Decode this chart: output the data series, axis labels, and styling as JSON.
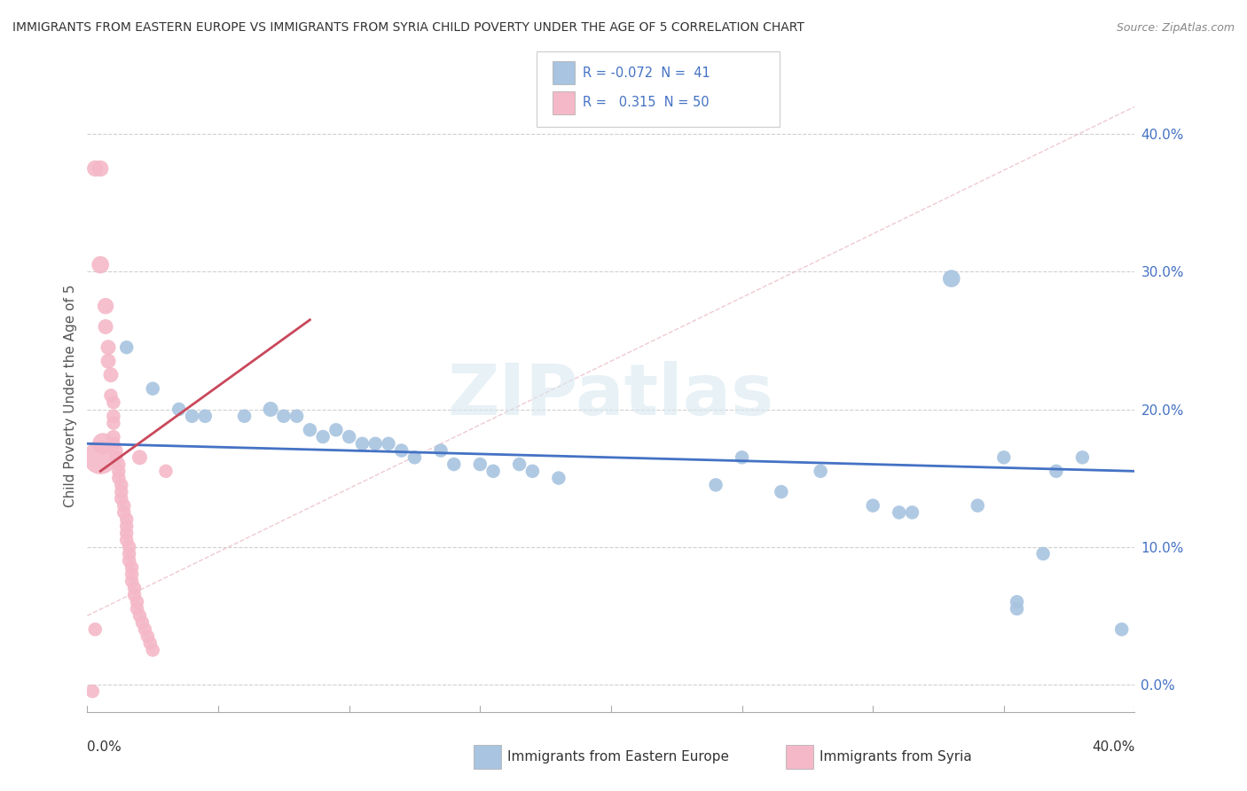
{
  "title": "IMMIGRANTS FROM EASTERN EUROPE VS IMMIGRANTS FROM SYRIA CHILD POVERTY UNDER THE AGE OF 5 CORRELATION CHART",
  "source": "Source: ZipAtlas.com",
  "ylabel": "Child Poverty Under the Age of 5",
  "ytick_vals": [
    0.0,
    0.1,
    0.2,
    0.3,
    0.4
  ],
  "ytick_labels": [
    "0.0%",
    "10.0%",
    "20.0%",
    "30.0%",
    "40.0%"
  ],
  "xlim": [
    0,
    0.4
  ],
  "ylim": [
    -0.02,
    0.44
  ],
  "watermark": "ZIPatlas",
  "blue_line_color": "#4472c4",
  "pink_line_color": "#c9485b",
  "diag_line_color": "#e8b4bc",
  "grid_color": "#d0d0d0",
  "background_color": "#ffffff",
  "blue_scatter_color": "#a8c4e0",
  "pink_scatter_color": "#f4b8c8",
  "blue_R": -0.072,
  "blue_N": 41,
  "pink_R": 0.315,
  "pink_N": 50,
  "blue_line_x0": 0.0,
  "blue_line_y0": 0.175,
  "blue_line_x1": 0.4,
  "blue_line_y1": 0.155,
  "pink_line_x0": 0.005,
  "pink_line_y0": 0.155,
  "pink_line_x1": 0.085,
  "pink_line_y1": 0.265,
  "diag_line_x0": 0.0,
  "diag_line_y0": 0.05,
  "diag_line_x1": 0.4,
  "diag_line_y1": 0.42,
  "blue_points": [
    [
      0.015,
      0.245
    ],
    [
      0.025,
      0.215
    ],
    [
      0.035,
      0.2
    ],
    [
      0.04,
      0.195
    ],
    [
      0.045,
      0.195
    ],
    [
      0.06,
      0.195
    ],
    [
      0.07,
      0.2
    ],
    [
      0.075,
      0.195
    ],
    [
      0.08,
      0.195
    ],
    [
      0.085,
      0.185
    ],
    [
      0.09,
      0.18
    ],
    [
      0.095,
      0.185
    ],
    [
      0.1,
      0.18
    ],
    [
      0.105,
      0.175
    ],
    [
      0.11,
      0.175
    ],
    [
      0.115,
      0.175
    ],
    [
      0.12,
      0.17
    ],
    [
      0.125,
      0.165
    ],
    [
      0.135,
      0.17
    ],
    [
      0.14,
      0.16
    ],
    [
      0.15,
      0.16
    ],
    [
      0.155,
      0.155
    ],
    [
      0.165,
      0.16
    ],
    [
      0.17,
      0.155
    ],
    [
      0.18,
      0.15
    ],
    [
      0.24,
      0.145
    ],
    [
      0.25,
      0.165
    ],
    [
      0.265,
      0.14
    ],
    [
      0.28,
      0.155
    ],
    [
      0.3,
      0.13
    ],
    [
      0.31,
      0.125
    ],
    [
      0.315,
      0.125
    ],
    [
      0.33,
      0.295
    ],
    [
      0.34,
      0.13
    ],
    [
      0.35,
      0.165
    ],
    [
      0.355,
      0.06
    ],
    [
      0.355,
      0.055
    ],
    [
      0.365,
      0.095
    ],
    [
      0.37,
      0.155
    ],
    [
      0.38,
      0.165
    ],
    [
      0.395,
      0.04
    ]
  ],
  "blue_sizes": [
    25,
    25,
    25,
    25,
    25,
    25,
    30,
    25,
    25,
    25,
    25,
    25,
    25,
    25,
    25,
    25,
    25,
    25,
    25,
    25,
    25,
    25,
    25,
    25,
    25,
    25,
    25,
    25,
    25,
    25,
    25,
    25,
    40,
    25,
    25,
    25,
    25,
    25,
    25,
    25,
    25
  ],
  "pink_points": [
    [
      0.003,
      0.375
    ],
    [
      0.005,
      0.305
    ],
    [
      0.007,
      0.275
    ],
    [
      0.007,
      0.26
    ],
    [
      0.008,
      0.245
    ],
    [
      0.008,
      0.235
    ],
    [
      0.009,
      0.225
    ],
    [
      0.009,
      0.21
    ],
    [
      0.01,
      0.205
    ],
    [
      0.01,
      0.195
    ],
    [
      0.01,
      0.19
    ],
    [
      0.01,
      0.18
    ],
    [
      0.01,
      0.175
    ],
    [
      0.011,
      0.17
    ],
    [
      0.011,
      0.165
    ],
    [
      0.012,
      0.16
    ],
    [
      0.012,
      0.155
    ],
    [
      0.012,
      0.15
    ],
    [
      0.013,
      0.145
    ],
    [
      0.013,
      0.14
    ],
    [
      0.013,
      0.135
    ],
    [
      0.014,
      0.13
    ],
    [
      0.014,
      0.125
    ],
    [
      0.015,
      0.12
    ],
    [
      0.015,
      0.115
    ],
    [
      0.015,
      0.11
    ],
    [
      0.015,
      0.105
    ],
    [
      0.016,
      0.1
    ],
    [
      0.016,
      0.095
    ],
    [
      0.016,
      0.09
    ],
    [
      0.017,
      0.085
    ],
    [
      0.017,
      0.08
    ],
    [
      0.017,
      0.075
    ],
    [
      0.018,
      0.07
    ],
    [
      0.018,
      0.065
    ],
    [
      0.019,
      0.06
    ],
    [
      0.019,
      0.055
    ],
    [
      0.02,
      0.05
    ],
    [
      0.021,
      0.045
    ],
    [
      0.022,
      0.04
    ],
    [
      0.023,
      0.035
    ],
    [
      0.024,
      0.03
    ],
    [
      0.025,
      0.025
    ],
    [
      0.003,
      0.04
    ],
    [
      0.005,
      0.165
    ],
    [
      0.006,
      0.175
    ],
    [
      0.02,
      0.165
    ],
    [
      0.03,
      0.155
    ],
    [
      0.002,
      -0.005
    ],
    [
      0.005,
      0.375
    ]
  ],
  "pink_sizes": [
    35,
    40,
    35,
    30,
    30,
    30,
    30,
    25,
    25,
    25,
    25,
    25,
    25,
    25,
    25,
    25,
    25,
    25,
    25,
    25,
    25,
    25,
    25,
    25,
    25,
    25,
    25,
    25,
    25,
    25,
    25,
    25,
    25,
    25,
    25,
    25,
    25,
    25,
    25,
    25,
    25,
    25,
    25,
    25,
    150,
    60,
    30,
    25,
    25,
    35
  ]
}
